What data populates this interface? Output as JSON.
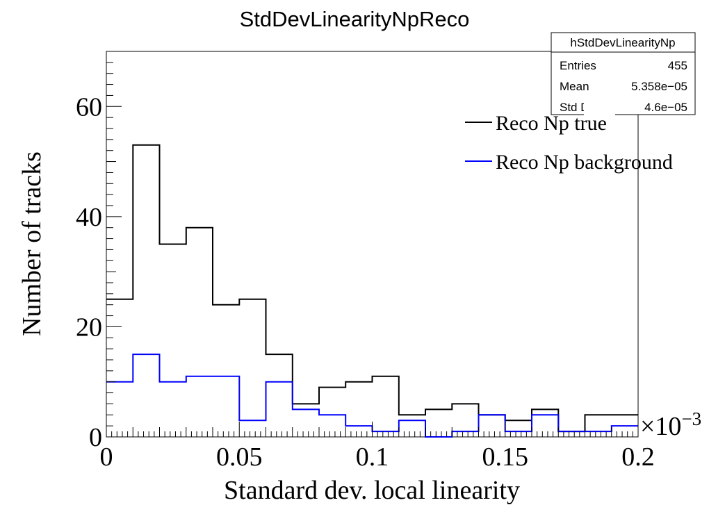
{
  "chart_data": {
    "type": "histogram",
    "title": "StdDevLinearityNpReco",
    "xlabel": "Standard dev. local linearity",
    "ylabel": "Number of tracks",
    "x_exponent_label": "×10",
    "x_exponent_power": "−3",
    "xlim": [
      0,
      0.2
    ],
    "ylim": [
      0,
      70
    ],
    "x_ticks": [
      "0",
      "0.05",
      "0.1",
      "0.15",
      "0.2"
    ],
    "x_tick_values": [
      0,
      0.05,
      0.1,
      0.15,
      0.2
    ],
    "y_ticks": [
      "0",
      "20",
      "40",
      "60"
    ],
    "y_tick_values": [
      0,
      20,
      40,
      60
    ],
    "bin_edges": [
      0,
      0.01,
      0.02,
      0.03,
      0.04,
      0.05,
      0.06,
      0.07,
      0.08,
      0.09,
      0.1,
      0.11,
      0.12,
      0.13,
      0.14,
      0.15,
      0.16,
      0.17,
      0.18,
      0.19,
      0.2
    ],
    "series": [
      {
        "name": "Reco Np true",
        "color": "#000000",
        "values": [
          25,
          53,
          35,
          38,
          24,
          25,
          15,
          6,
          9,
          10,
          11,
          4,
          5,
          6,
          4,
          3,
          5,
          1,
          4,
          4
        ]
      },
      {
        "name": "Reco Np background",
        "color": "#0000ff",
        "values": [
          10,
          15,
          10,
          11,
          11,
          3,
          10,
          5,
          4,
          2,
          1,
          3,
          0,
          1,
          4,
          1,
          4,
          1,
          1,
          2
        ]
      }
    ],
    "legend_position": "top-right",
    "stats_box": {
      "name": "hStdDevLinearityNp",
      "rows": [
        {
          "label": "Entries",
          "value": "455"
        },
        {
          "label": "Mean",
          "value": "5.358e−05"
        },
        {
          "label": "Std Dev",
          "value": "4.6e−05"
        }
      ]
    }
  }
}
